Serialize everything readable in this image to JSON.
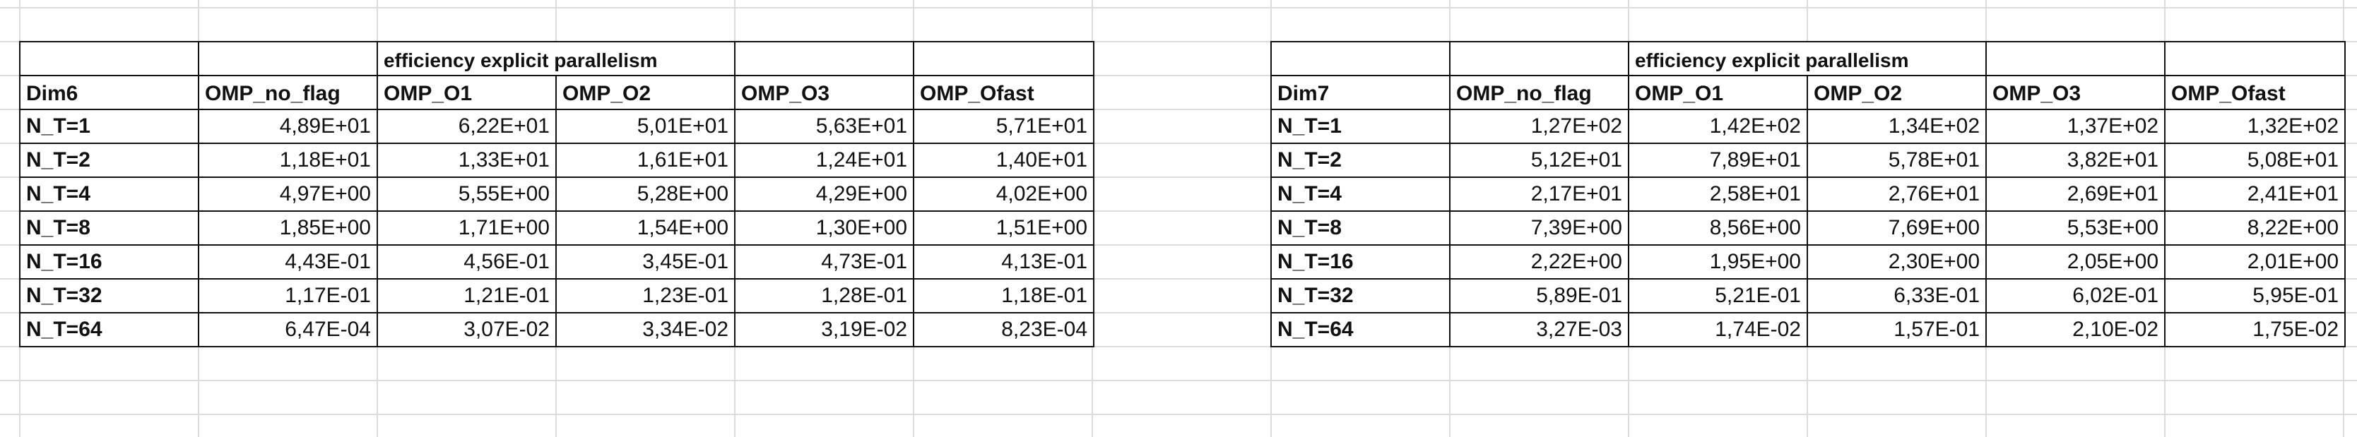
{
  "tables": [
    {
      "group_label": "efficiency explicit parallelism",
      "headers": [
        "Dim6",
        "OMP_no_flag",
        "OMP_O1",
        "OMP_O2",
        "OMP_O3",
        "OMP_Ofast"
      ],
      "rows": [
        [
          "N_T=1",
          "4,89E+01",
          "6,22E+01",
          "5,01E+01",
          "5,63E+01",
          "5,71E+01"
        ],
        [
          "N_T=2",
          "1,18E+01",
          "1,33E+01",
          "1,61E+01",
          "1,24E+01",
          "1,40E+01"
        ],
        [
          "N_T=4",
          "4,97E+00",
          "5,55E+00",
          "5,28E+00",
          "4,29E+00",
          "4,02E+00"
        ],
        [
          "N_T=8",
          "1,85E+00",
          "1,71E+00",
          "1,54E+00",
          "1,30E+00",
          "1,51E+00"
        ],
        [
          "N_T=16",
          "4,43E-01",
          "4,56E-01",
          "3,45E-01",
          "4,73E-01",
          "4,13E-01"
        ],
        [
          "N_T=32",
          "1,17E-01",
          "1,21E-01",
          "1,23E-01",
          "1,28E-01",
          "1,18E-01"
        ],
        [
          "N_T=64",
          "6,47E-04",
          "3,07E-02",
          "3,34E-02",
          "3,19E-02",
          "8,23E-04"
        ]
      ]
    },
    {
      "group_label": "efficiency explicit parallelism",
      "headers": [
        "Dim7",
        "OMP_no_flag",
        "OMP_O1",
        "OMP_O2",
        "OMP_O3",
        "OMP_Ofast"
      ],
      "rows": [
        [
          "N_T=1",
          "1,27E+02",
          "1,42E+02",
          "1,34E+02",
          "1,37E+02",
          "1,32E+02"
        ],
        [
          "N_T=2",
          "5,12E+01",
          "7,89E+01",
          "5,78E+01",
          "3,82E+01",
          "5,08E+01"
        ],
        [
          "N_T=4",
          "2,17E+01",
          "2,58E+01",
          "2,76E+01",
          "2,69E+01",
          "2,41E+01"
        ],
        [
          "N_T=8",
          "7,39E+00",
          "8,56E+00",
          "7,69E+00",
          "5,53E+00",
          "8,22E+00"
        ],
        [
          "N_T=16",
          "2,22E+00",
          "1,95E+00",
          "2,30E+00",
          "2,05E+00",
          "2,01E+00"
        ],
        [
          "N_T=32",
          "5,89E-01",
          "5,21E-01",
          "6,33E-01",
          "6,02E-01",
          "5,95E-01"
        ],
        [
          "N_T=64",
          "3,27E-03",
          "1,74E-02",
          "1,57E-01",
          "2,10E-02",
          "1,75E-02"
        ]
      ]
    }
  ]
}
